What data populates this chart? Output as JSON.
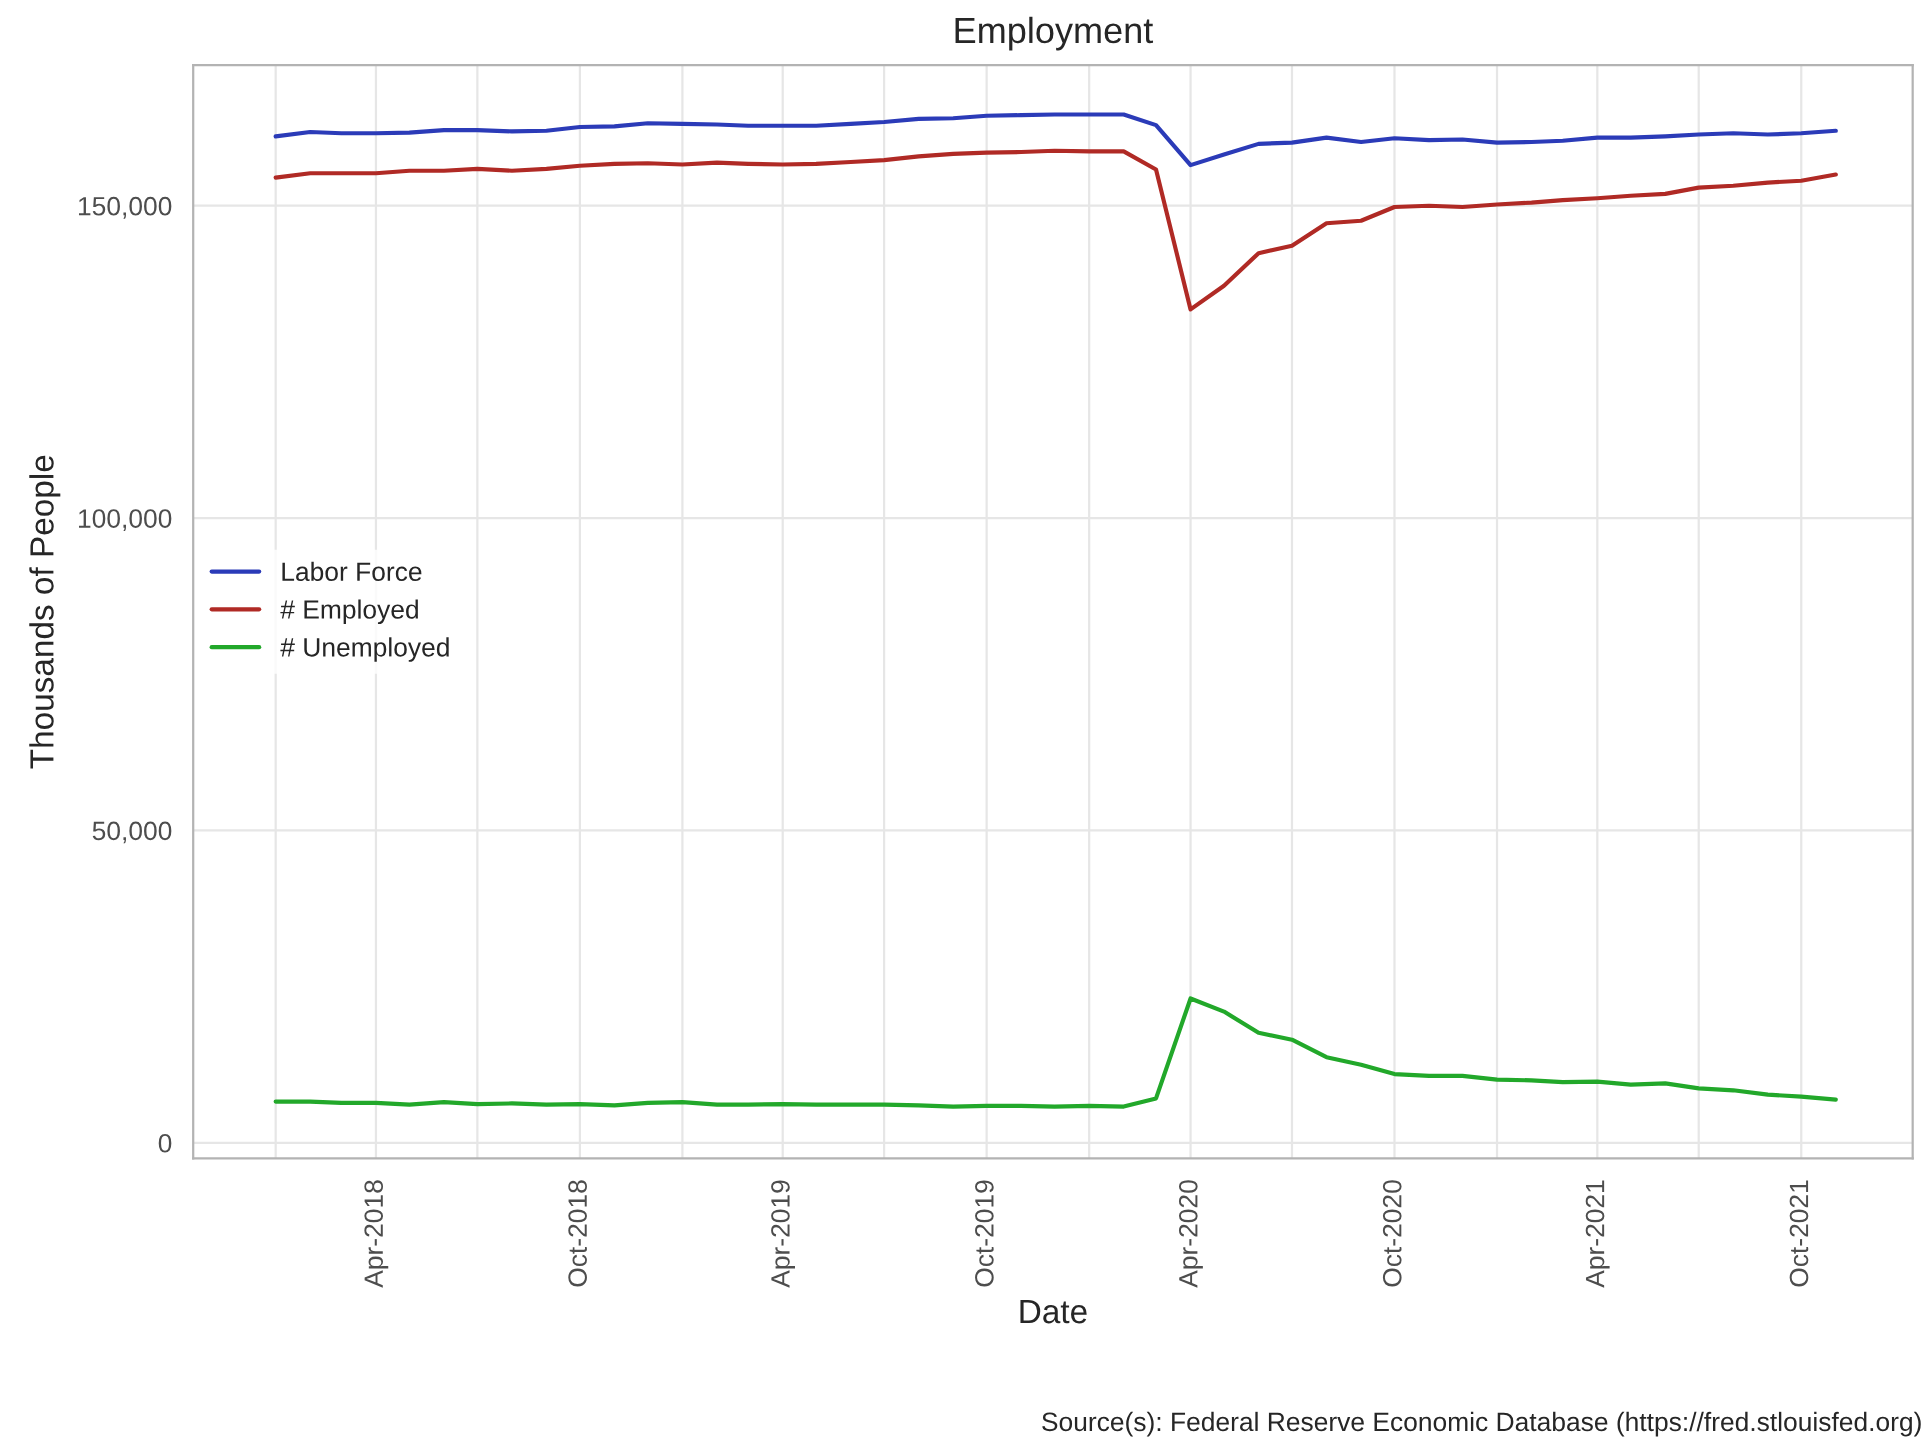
{
  "chart_data": {
    "type": "line",
    "title": "Employment",
    "xlabel": "Date",
    "ylabel": "Thousands of People",
    "annotations": [
      "Source(s): Federal Reserve Economic Database (https://fred.stlouisfed.org)"
    ],
    "x": [
      "2018-01",
      "2018-02",
      "2018-03",
      "2018-04",
      "2018-05",
      "2018-06",
      "2018-07",
      "2018-08",
      "2018-09",
      "2018-10",
      "2018-11",
      "2018-12",
      "2019-01",
      "2019-02",
      "2019-03",
      "2019-04",
      "2019-05",
      "2019-06",
      "2019-07",
      "2019-08",
      "2019-09",
      "2019-10",
      "2019-11",
      "2019-12",
      "2020-01",
      "2020-02",
      "2020-03",
      "2020-04",
      "2020-05",
      "2020-06",
      "2020-07",
      "2020-08",
      "2020-09",
      "2020-10",
      "2020-11",
      "2020-12",
      "2021-01",
      "2021-02",
      "2021-03",
      "2021-04",
      "2021-05",
      "2021-06",
      "2021-07",
      "2021-08",
      "2021-09",
      "2021-10",
      "2021-11"
    ],
    "series": [
      {
        "name": "Labor Force",
        "color": "#2b3bb8",
        "values": [
          161100,
          161800,
          161600,
          161600,
          161700,
          162100,
          162100,
          161900,
          162000,
          162600,
          162700,
          163200,
          163100,
          163000,
          162800,
          162800,
          162800,
          163100,
          163400,
          163900,
          164000,
          164400,
          164500,
          164600,
          164600,
          164600,
          162900,
          156500,
          158200,
          159900,
          160100,
          160900,
          160200,
          160800,
          160500,
          160600,
          160100,
          160200,
          160400,
          160900,
          160900,
          161100,
          161400,
          161600,
          161400,
          161600,
          162000
        ]
      },
      {
        "name": "# Employed",
        "color": "#b02a25",
        "values": [
          154500,
          155200,
          155200,
          155200,
          155600,
          155600,
          155900,
          155600,
          155900,
          156400,
          156700,
          156800,
          156600,
          156900,
          156700,
          156600,
          156700,
          157000,
          157300,
          157900,
          158300,
          158500,
          158600,
          158800,
          158700,
          158700,
          155800,
          133400,
          137200,
          142400,
          143600,
          147200,
          147600,
          149800,
          150000,
          149800,
          150200,
          150500,
          150900,
          151200,
          151600,
          151900,
          152900,
          153200,
          153700,
          154000,
          155000
        ]
      },
      {
        "name": "# Unemployed",
        "color": "#22a82a",
        "values": [
          6600,
          6600,
          6400,
          6400,
          6100,
          6500,
          6200,
          6300,
          6100,
          6200,
          6000,
          6400,
          6500,
          6100,
          6100,
          6200,
          6100,
          6100,
          6100,
          6000,
          5800,
          5900,
          5900,
          5800,
          5900,
          5800,
          7100,
          23100,
          21000,
          17600,
          16500,
          13700,
          12500,
          11000,
          10700,
          10700,
          10100,
          10000,
          9700,
          9800,
          9300,
          9500,
          8700,
          8400,
          7700,
          7400,
          6900
        ]
      }
    ],
    "xlim": [
      "2017-10-19",
      "2022-01-09"
    ],
    "xticks": [
      {
        "value": "2018-01",
        "label": null
      },
      {
        "value": "2018-04",
        "label": "Apr-2018"
      },
      {
        "value": "2018-07",
        "label": null
      },
      {
        "value": "2018-10",
        "label": "Oct-2018"
      },
      {
        "value": "2019-01",
        "label": null
      },
      {
        "value": "2019-04",
        "label": "Apr-2019"
      },
      {
        "value": "2019-07",
        "label": null
      },
      {
        "value": "2019-10",
        "label": "Oct-2019"
      },
      {
        "value": "2020-01",
        "label": null
      },
      {
        "value": "2020-04",
        "label": "Apr-2020"
      },
      {
        "value": "2020-07",
        "label": null
      },
      {
        "value": "2020-10",
        "label": "Oct-2020"
      },
      {
        "value": "2021-01",
        "label": null
      },
      {
        "value": "2021-04",
        "label": "Apr-2021"
      },
      {
        "value": "2021-07",
        "label": null
      },
      {
        "value": "2021-10",
        "label": "Oct-2021"
      }
    ],
    "ylim": [
      -2500,
      172500
    ],
    "yticks": [
      0,
      {
        "value": 50000,
        "label": "50,000"
      },
      {
        "value": 100000,
        "label": "100,000"
      },
      {
        "value": 150000,
        "label": "150,000"
      }
    ],
    "grid": true,
    "legend": "left",
    "marker": "none",
    "line_style": "solid"
  }
}
